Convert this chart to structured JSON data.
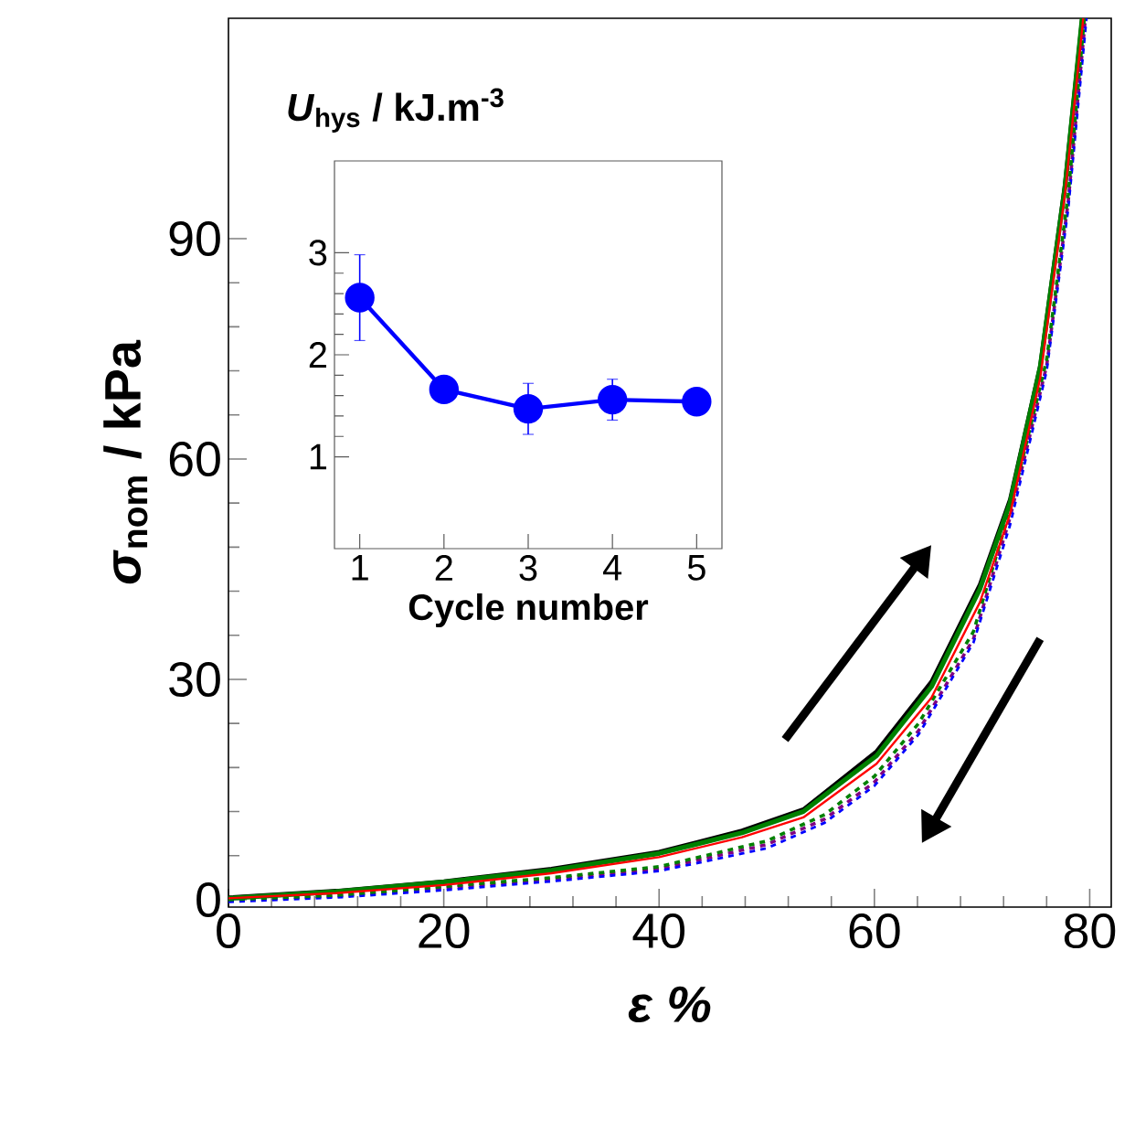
{
  "chart_data": [
    {
      "type": "line",
      "xlabel": "ε %",
      "ylabel": "*σ*$_{nom}$ / kPa",
      "xlim": [
        0,
        82
      ],
      "ylim": [
        -1,
        120
      ],
      "xticks": [
        0,
        20,
        40,
        60,
        80
      ],
      "yticks": [
        0,
        30,
        60,
        90
      ],
      "marker": "none",
      "series": [
        {
          "color": "#000000",
          "line_style": "solid",
          "x": [
            0,
            10,
            20,
            30,
            40,
            47.7,
            53.4,
            60.2,
            65.3,
            69.8,
            72.6,
            75.4,
            77.7,
            79.3
          ],
          "values": [
            0.3,
            1.2,
            2.5,
            4.2,
            6.5,
            9.4,
            12.3,
            20.2,
            29.7,
            42.9,
            54.5,
            72.7,
            97.4,
            120
          ]
        },
        {
          "color": "#008000",
          "line_style": "solid",
          "x": [
            0,
            10,
            20,
            30,
            40,
            47.7,
            53.4,
            60.2,
            65.3,
            69.8,
            72.6,
            75.4,
            77.7,
            79.3
          ],
          "values": [
            0.2,
            1.1,
            2.4,
            4.0,
            6.3,
            9.1,
            12.0,
            19.6,
            29.0,
            42.3,
            54,
            72.5,
            97,
            120
          ]
        },
        {
          "color": "#800080",
          "line_style": "dashed",
          "x": [
            0,
            10,
            20,
            30,
            40,
            50,
            55.4,
            60,
            64.1,
            69.2,
            72.6,
            76,
            78,
            79.6
          ],
          "values": [
            0,
            0.5,
            1.6,
            2.8,
            4.2,
            7.5,
            11,
            16,
            23,
            35.5,
            52,
            72.7,
            95,
            120
          ]
        },
        {
          "color": "#0000ff",
          "line_style": "dashed",
          "x": [
            0,
            10,
            20,
            30,
            40,
            50,
            55.4,
            60,
            64.1,
            69.2,
            72.6,
            76,
            78,
            79.7
          ],
          "values": [
            -0.3,
            0.3,
            1.3,
            2.5,
            3.9,
            7.0,
            10.5,
            15.5,
            22.5,
            35,
            51,
            72,
            94,
            120
          ]
        },
        {
          "color": "#008000",
          "line_style": "dashed",
          "x": [
            0,
            10,
            20,
            30,
            40,
            50,
            55.4,
            60,
            64.1,
            69.2,
            72.6,
            76,
            78,
            79.5
          ],
          "values": [
            0,
            0.6,
            1.8,
            3.0,
            4.5,
            8.0,
            11.6,
            16.8,
            24,
            36.5,
            53,
            73.5,
            96,
            120
          ]
        },
        {
          "color": "#ff0000",
          "line_style": "solid",
          "x": [
            0,
            10,
            20,
            30,
            40,
            47.7,
            53.4,
            60.2,
            65.3,
            69.8,
            72.6,
            75.4,
            77.7,
            79.4
          ],
          "values": [
            0.2,
            0.9,
            2.0,
            3.6,
            5.8,
            8.5,
            11.2,
            18.5,
            27.5,
            40.5,
            52.5,
            71,
            96,
            120
          ]
        }
      ]
    },
    {
      "type": "line",
      "xlabel": "Cycle number",
      "ylabel": "*U*$_{hys}$ / kJ.m$^{-3}$",
      "x": [
        1,
        2,
        3,
        4,
        5
      ],
      "xlim": [
        0.7,
        5.3
      ],
      "ylim": [
        0.1,
        3.9
      ],
      "xticks": [
        1,
        2,
        3,
        4,
        5
      ],
      "yticks": [
        1,
        2,
        3
      ],
      "marker": "circle",
      "series": [
        {
          "color": "#0000ff",
          "values": [
            2.56,
            1.66,
            1.47,
            1.56,
            1.54
          ],
          "errors": [
            0.42,
            null,
            0.25,
            0.2,
            null
          ]
        }
      ]
    }
  ]
}
